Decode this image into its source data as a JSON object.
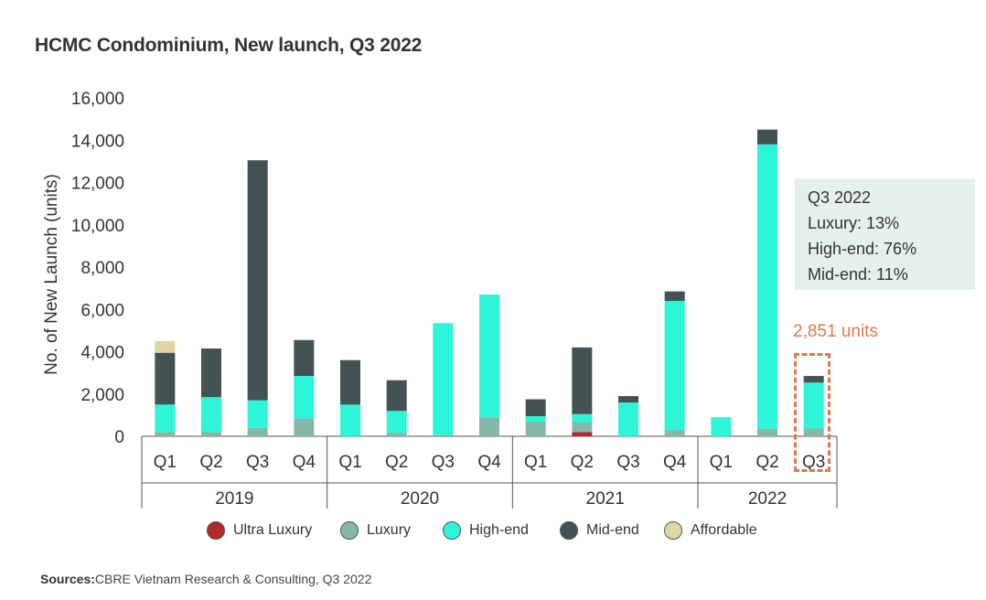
{
  "title": "HCMC Condominium, New launch, Q3 2022",
  "sources_label": "Sources:",
  "sources_text": "CBRE Vietnam Research & Consulting, Q3 2022",
  "callout": {
    "lines": [
      "Q3 2022",
      "Luxury: 13%",
      "High-end: 76%",
      "Mid-end: 11%"
    ]
  },
  "units_label": "2,851 units",
  "colors": {
    "Ultra Luxury": "#b22a2a",
    "Luxury": "#86b8a9",
    "High-end": "#2cf5d8",
    "Mid-end": "#435253",
    "Affordable": "#e0d6a3",
    "accent": "#d97c4f"
  },
  "chart_data": {
    "type": "bar",
    "stacked": true,
    "ylabel": "No. of New Launch (units)",
    "ylim": [
      0,
      16000
    ],
    "yticks": [
      0,
      2000,
      4000,
      6000,
      8000,
      10000,
      12000,
      14000,
      16000
    ],
    "ytick_labels": [
      "0",
      "2,000",
      "4,000",
      "6,000",
      "8,000",
      "10,000",
      "12,000",
      "14,000",
      "16,000"
    ],
    "categories": [
      "Q1",
      "Q2",
      "Q3",
      "Q4",
      "Q1",
      "Q2",
      "Q3",
      "Q4",
      "Q1",
      "Q2",
      "Q3",
      "Q4",
      "Q1",
      "Q2",
      "Q3"
    ],
    "groups": [
      {
        "label": "2019",
        "count": 4
      },
      {
        "label": "2020",
        "count": 4
      },
      {
        "label": "2021",
        "count": 4
      },
      {
        "label": "2022",
        "count": 3
      }
    ],
    "series": [
      {
        "name": "Ultra Luxury",
        "values": [
          0,
          0,
          0,
          0,
          0,
          0,
          0,
          0,
          0,
          200,
          0,
          0,
          0,
          0,
          0
        ]
      },
      {
        "name": "Luxury",
        "values": [
          200,
          200,
          400,
          850,
          0,
          150,
          50,
          900,
          700,
          450,
          0,
          300,
          0,
          350,
          370
        ]
      },
      {
        "name": "High-end",
        "values": [
          1300,
          1650,
          1300,
          2000,
          1500,
          1050,
          5300,
          5800,
          250,
          400,
          1600,
          6100,
          900,
          13450,
          2170
        ]
      },
      {
        "name": "Mid-end",
        "values": [
          2450,
          2300,
          11350,
          1700,
          2100,
          1450,
          0,
          0,
          800,
          3150,
          300,
          450,
          0,
          700,
          311
        ]
      },
      {
        "name": "Affordable",
        "values": [
          550,
          0,
          0,
          0,
          0,
          0,
          0,
          0,
          0,
          0,
          0,
          0,
          0,
          0,
          0
        ]
      }
    ],
    "legend_position": "bottom"
  }
}
